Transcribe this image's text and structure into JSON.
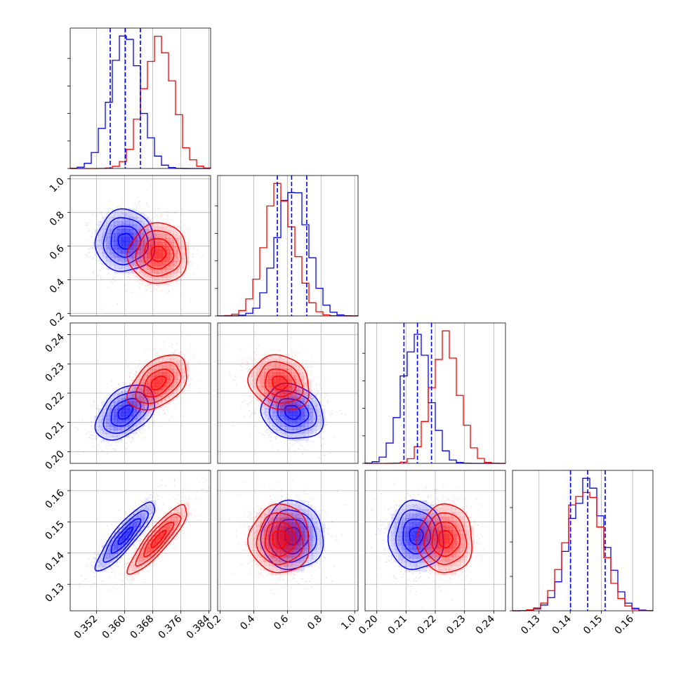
{
  "chart_data": {
    "type": "corner",
    "n_params": 4,
    "grid": true,
    "series": [
      {
        "color": "#0000ff",
        "mean": [
          0.3602,
          0.63,
          0.2135,
          0.1455
        ],
        "std": [
          0.0042,
          0.092,
          0.0047,
          0.0055
        ],
        "corr": [
          [
            1.0,
            0.0,
            0.45,
            0.88
          ],
          [
            0.0,
            1.0,
            -0.15,
            0.0
          ],
          [
            0.45,
            -0.15,
            1.0,
            0.0
          ],
          [
            0.88,
            0.0,
            0.0,
            1.0
          ]
        ]
      },
      {
        "color": "#ff0000",
        "mean": [
          0.3696,
          0.555,
          0.2235,
          0.1445
        ],
        "std": [
          0.0042,
          0.09,
          0.0047,
          0.0055
        ],
        "corr": [
          [
            1.0,
            0.0,
            0.45,
            0.88
          ],
          [
            0.0,
            1.0,
            -0.15,
            0.0
          ],
          [
            0.45,
            -0.15,
            1.0,
            0.0
          ],
          [
            0.88,
            0.0,
            0.0,
            1.0
          ]
        ]
      }
    ],
    "quantile_lines": [
      {
        "param": 0,
        "color": "#0000ff",
        "values": [
          0.3559,
          0.3602,
          0.3645
        ]
      },
      {
        "param": 1,
        "color": "#0000ff",
        "values": [
          0.54,
          0.625,
          0.715
        ]
      },
      {
        "param": 2,
        "color": "#0000ff",
        "values": [
          0.2093,
          0.2139,
          0.2187
        ]
      },
      {
        "param": 3,
        "color": "#0000ff",
        "values": [
          0.1401,
          0.1456,
          0.1512
        ]
      }
    ],
    "ranges": [
      [
        0.3445,
        0.3845
      ],
      [
        0.185,
        1.02
      ],
      [
        0.196,
        0.244
      ],
      [
        0.1215,
        0.1665
      ]
    ],
    "ticks": [
      [
        0.352,
        0.36,
        0.368,
        0.376,
        0.384
      ],
      [
        0.2,
        0.4,
        0.6,
        0.8,
        1.0
      ],
      [
        0.2,
        0.21,
        0.22,
        0.23,
        0.24
      ],
      [
        0.13,
        0.14,
        0.15,
        0.16
      ]
    ],
    "tick_labels": [
      [
        "0.352",
        "0.360",
        "0.368",
        "0.376",
        "0.384"
      ],
      [
        "0.2",
        "0.4",
        "0.6",
        "0.8",
        "1.0"
      ],
      [
        "0.20",
        "0.21",
        "0.22",
        "0.23",
        "0.24"
      ],
      [
        "0.13",
        "0.14",
        "0.15",
        "0.16"
      ]
    ],
    "histogram_ticks": [
      [
        0,
        1,
        2,
        3,
        4
      ],
      [
        0,
        1,
        2,
        3,
        4
      ],
      [
        0,
        1,
        2,
        3,
        4
      ],
      [
        0,
        1,
        2,
        3
      ]
    ]
  }
}
